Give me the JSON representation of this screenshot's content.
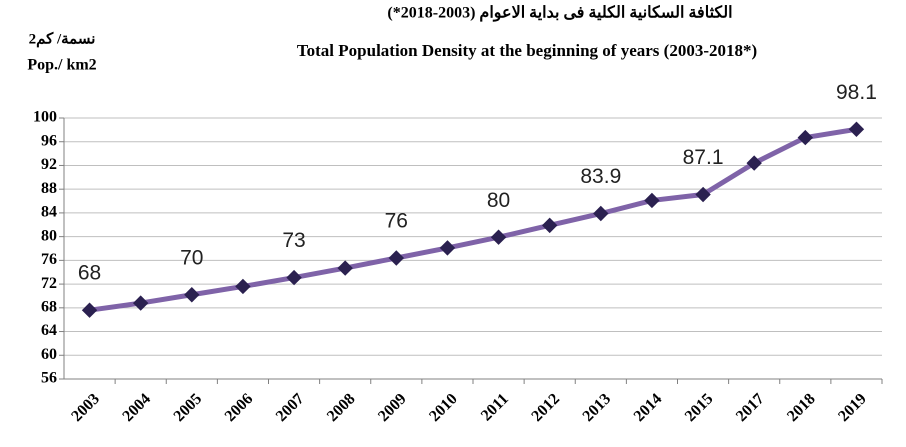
{
  "chart_data": {
    "type": "line",
    "title_ar": "الكثافة السكانية الكلية فى بداية الاعوام (2003-2018*)",
    "title": "Total Population Density at the beginning of  years (2003-2018*)",
    "y_label_ar": "نسمة/ كم2",
    "y_label": "Pop./ km2",
    "categories": [
      "2003",
      "2004",
      "2005",
      "2006",
      "2007",
      "2008",
      "2009",
      "2010",
      "2011",
      "2012",
      "2013",
      "2014",
      "2015",
      "2017",
      "2018",
      "2019"
    ],
    "series": [
      {
        "name": "Pop./ km2",
        "color": "#7f63a8",
        "marker_color": "#2b2150",
        "values": [
          67.6,
          68.8,
          70.2,
          71.6,
          73.1,
          74.7,
          76.4,
          78.1,
          79.9,
          81.9,
          83.9,
          86.1,
          87.1,
          92.4,
          96.7,
          98.1
        ],
        "value_labels": [
          "68",
          null,
          "70",
          null,
          "73",
          null,
          "76",
          null,
          "80",
          null,
          "83.9",
          null,
          "87.1",
          null,
          null,
          "98.1"
        ]
      }
    ],
    "ylim": [
      56,
      100
    ],
    "yticks": [
      56,
      60,
      64,
      68,
      72,
      76,
      80,
      84,
      88,
      92,
      96,
      100
    ],
    "grid": true
  }
}
